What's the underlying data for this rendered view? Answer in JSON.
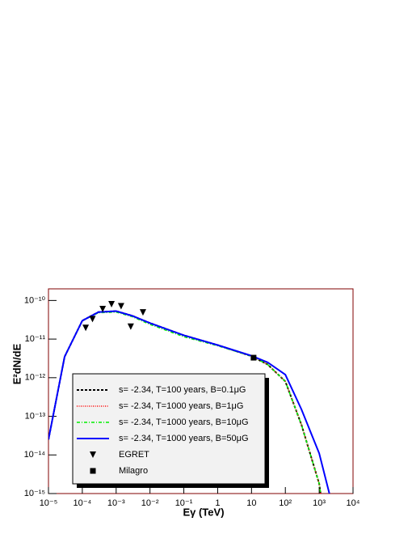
{
  "chart_data": {
    "type": "line",
    "ylabel": "E²dN/dE",
    "xlabel": "Eγ (TeV)",
    "xlog": true,
    "ylog": true,
    "xlim": [
      1e-05,
      10000.0
    ],
    "ylim": [
      1e-15,
      2e-10
    ],
    "xticks": [
      {
        "value": 1e-05,
        "label": "10⁻⁵"
      },
      {
        "value": 0.0001,
        "label": "10⁻⁴"
      },
      {
        "value": 0.001,
        "label": "10⁻³"
      },
      {
        "value": 0.01,
        "label": "10⁻²"
      },
      {
        "value": 0.1,
        "label": "10⁻¹"
      },
      1,
      10,
      {
        "value": 100,
        "label": "10²"
      },
      {
        "value": 1000,
        "label": "10³"
      },
      {
        "value": 10000,
        "label": "10⁴"
      }
    ],
    "yticks": [
      {
        "value": 1e-15,
        "label": "10⁻¹⁵"
      },
      {
        "value": 1e-14,
        "label": "10⁻¹⁴"
      },
      {
        "value": 1e-13,
        "label": "10⁻¹³"
      },
      {
        "value": 1e-12,
        "label": "10⁻¹²"
      },
      {
        "value": 1e-11,
        "label": "10⁻¹¹"
      },
      {
        "value": 1e-10,
        "label": "10⁻¹⁰"
      }
    ],
    "series": [
      {
        "name": "s= -2.34, T=100 years, B=0.1μG",
        "color": "#000000",
        "style": "dashed",
        "x": [
          1e-05,
          3e-05,
          0.0001,
          0.0003,
          0.001,
          0.003,
          0.01,
          0.1,
          1,
          10,
          30,
          100,
          300,
          1000,
          1100
        ],
        "values": [
          2.5e-14,
          3.5e-12,
          3e-11,
          5e-11,
          5.3e-11,
          4e-11,
          2.6e-11,
          1.25e-11,
          7e-12,
          3.6e-12,
          2.2e-12,
          8e-13,
          6e-14,
          1.8e-15,
          1e-15
        ]
      },
      {
        "name": "s= -2.34, T=1000 years, B=1μG",
        "color": "#ff0000",
        "style": "dotted",
        "x": [
          1e-05,
          3e-05,
          0.0001,
          0.0003,
          0.001,
          0.003,
          0.01,
          0.1,
          1,
          10,
          30,
          100,
          300,
          1000,
          1100
        ],
        "values": [
          2.5e-14,
          3.5e-12,
          3e-11,
          5e-11,
          5.3e-11,
          4e-11,
          2.6e-11,
          1.25e-11,
          7e-12,
          3.6e-12,
          2.2e-12,
          8e-13,
          6e-14,
          1.8e-15,
          1e-15
        ]
      },
      {
        "name": "s= -2.34, T=1000 years, B=10μG",
        "color": "#00ee00",
        "style": "dashdot",
        "x": [
          1e-05,
          3e-05,
          0.0001,
          0.0003,
          0.001,
          0.003,
          0.01,
          0.1,
          1,
          10,
          30,
          100,
          300,
          1000,
          1100
        ],
        "values": [
          2.5e-14,
          3.5e-12,
          3e-11,
          4.8e-11,
          5e-11,
          3.8e-11,
          2.4e-11,
          1.15e-11,
          6.7e-12,
          3.6e-12,
          2.2e-12,
          8e-13,
          6e-14,
          1.8e-15,
          1e-15
        ]
      },
      {
        "name": "s= -2.34, T=1000 years, B=50μG",
        "color": "#0000ff",
        "style": "solid",
        "x": [
          1e-05,
          3e-05,
          0.0001,
          0.0003,
          0.001,
          0.003,
          0.01,
          0.1,
          1,
          10,
          30,
          100,
          300,
          1000,
          2000
        ],
        "values": [
          2.5e-14,
          3.5e-12,
          3e-11,
          5e-11,
          5.3e-11,
          4e-11,
          2.6e-11,
          1.25e-11,
          7e-12,
          3.7e-12,
          2.5e-12,
          1.2e-12,
          1.5e-13,
          1.1e-14,
          1e-15
        ]
      },
      {
        "name": "EGRET",
        "color": "#000000",
        "style": "triangle",
        "x": [
          0.000126,
          0.0002,
          0.0004,
          0.00073,
          0.0014,
          0.0027,
          0.0062
        ],
        "values": [
          1.95e-11,
          3.3e-11,
          6e-11,
          8e-11,
          7.1e-11,
          2.1e-11,
          4.9e-11
        ]
      },
      {
        "name": "Milagro",
        "color": "#000000",
        "style": "square",
        "x": [
          11.5
        ],
        "values": [
          3.3e-12
        ]
      }
    ]
  }
}
